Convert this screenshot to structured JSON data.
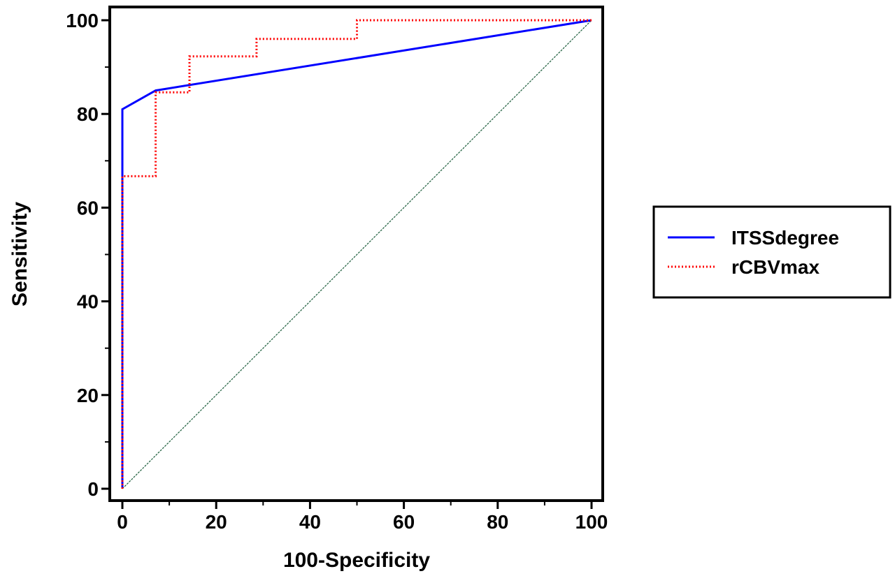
{
  "chart_data": {
    "type": "line",
    "title": "",
    "xlabel": "100-Specificity",
    "ylabel": "Sensitivity",
    "xlim": [
      0,
      100
    ],
    "ylim": [
      0,
      100
    ],
    "xticks": [
      0,
      20,
      40,
      60,
      80,
      100
    ],
    "yticks": [
      0,
      20,
      40,
      60,
      80,
      100
    ],
    "grid": false,
    "legend_position": "right",
    "series": [
      {
        "name": "ITSSdegree",
        "style": "solid",
        "color": "#0000ff",
        "x": [
          0,
          0,
          7.1,
          100
        ],
        "y": [
          0,
          81,
          85,
          100
        ]
      },
      {
        "name": "rCBVmax",
        "style": "dotted",
        "color": "#ff0000",
        "x": [
          0,
          0,
          7.1,
          7.1,
          14.3,
          14.3,
          28.6,
          28.6,
          50,
          50,
          100
        ],
        "y": [
          0,
          66.7,
          66.7,
          84.6,
          84.6,
          92.3,
          92.3,
          96,
          96,
          100,
          100
        ]
      }
    ],
    "reference_line": {
      "color": "#1a5c3a",
      "x": [
        0,
        100
      ],
      "y": [
        0,
        100
      ]
    }
  }
}
